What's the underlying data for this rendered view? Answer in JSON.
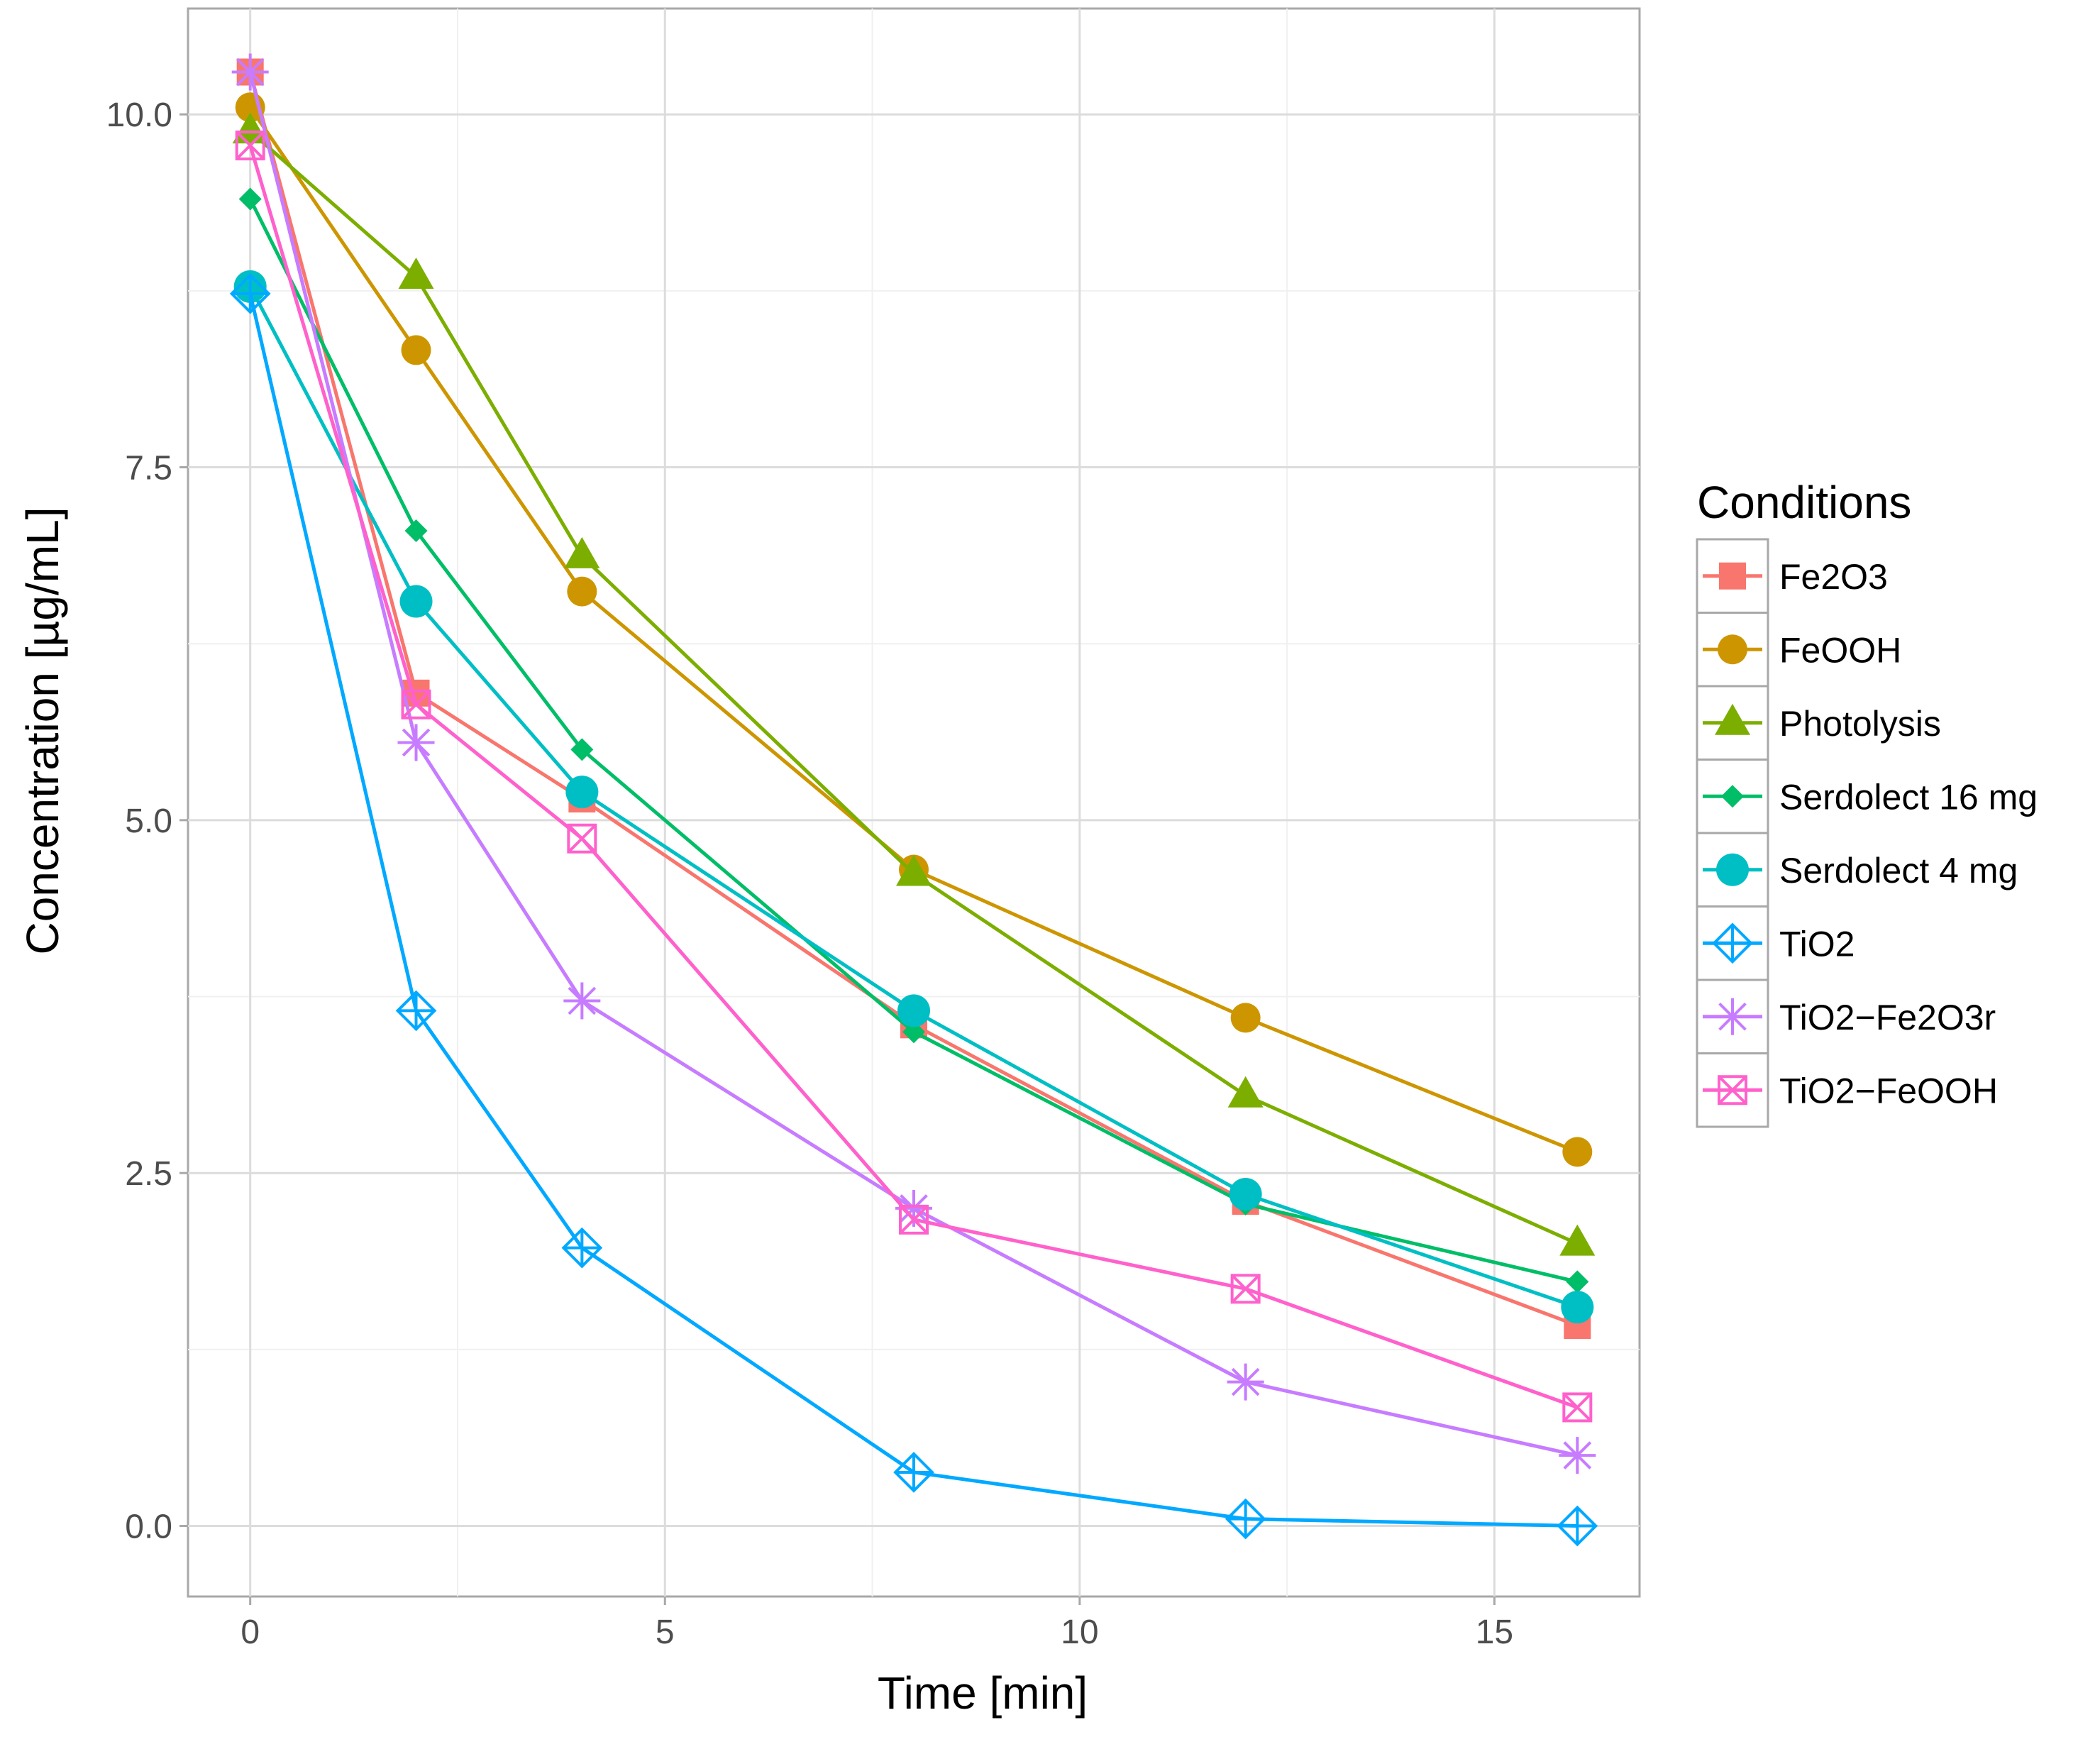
{
  "chart_data": {
    "type": "line",
    "xlabel": "Time  [min]",
    "ylabel": "Concentration [µg/mL]",
    "xlim": [
      -0.75,
      16.75
    ],
    "ylim": [
      -0.5,
      10.75
    ],
    "x_ticks": [
      0,
      5,
      10,
      15
    ],
    "x_tick_labels": [
      "0",
      "5",
      "10",
      "15"
    ],
    "y_ticks": [
      0,
      2.5,
      5,
      7.5,
      10
    ],
    "y_tick_labels": [
      "0.0",
      "2.5",
      "5.0",
      "7.5",
      "10.0"
    ],
    "grid": true,
    "legend": {
      "title": "Conditions",
      "position": "right"
    },
    "x": [
      0,
      2,
      4,
      8,
      12,
      16
    ],
    "series": [
      {
        "name": "Fe2O3",
        "color": "#F8766D",
        "marker": "square-filled",
        "values": [
          10.3,
          5.9,
          5.15,
          3.55,
          2.3,
          1.42
        ]
      },
      {
        "name": "FeOOH",
        "color": "#CD9600",
        "marker": "circle-filled",
        "values": [
          10.05,
          8.33,
          6.62,
          4.65,
          3.6,
          2.65
        ]
      },
      {
        "name": "Photolysis",
        "color": "#7CAE00",
        "marker": "triangle-filled",
        "values": [
          9.88,
          8.85,
          6.87,
          4.62,
          3.05,
          2.0
        ]
      },
      {
        "name": "Serdolect 16 mg",
        "color": "#00BE67",
        "marker": "diamond-filled",
        "values": [
          9.4,
          7.05,
          5.5,
          3.5,
          2.28,
          1.73
        ]
      },
      {
        "name": "Serdolect 4 mg",
        "color": "#00BFC4",
        "marker": "circle-filled-large",
        "values": [
          8.78,
          6.55,
          5.2,
          3.65,
          2.35,
          1.55
        ]
      },
      {
        "name": "TiO2",
        "color": "#00A9FF",
        "marker": "diamond-plus",
        "values": [
          8.73,
          3.65,
          1.97,
          0.38,
          0.05,
          0.0
        ]
      },
      {
        "name": "TiO2−Fe2O3r",
        "color": "#C77CFF",
        "marker": "asterisk",
        "values": [
          10.3,
          5.55,
          3.72,
          2.25,
          1.02,
          0.5
        ]
      },
      {
        "name": "TiO2−FeOOH",
        "color": "#FF61CC",
        "marker": "square-cross",
        "values": [
          9.78,
          5.82,
          4.87,
          2.17,
          1.68,
          0.84
        ]
      }
    ]
  }
}
